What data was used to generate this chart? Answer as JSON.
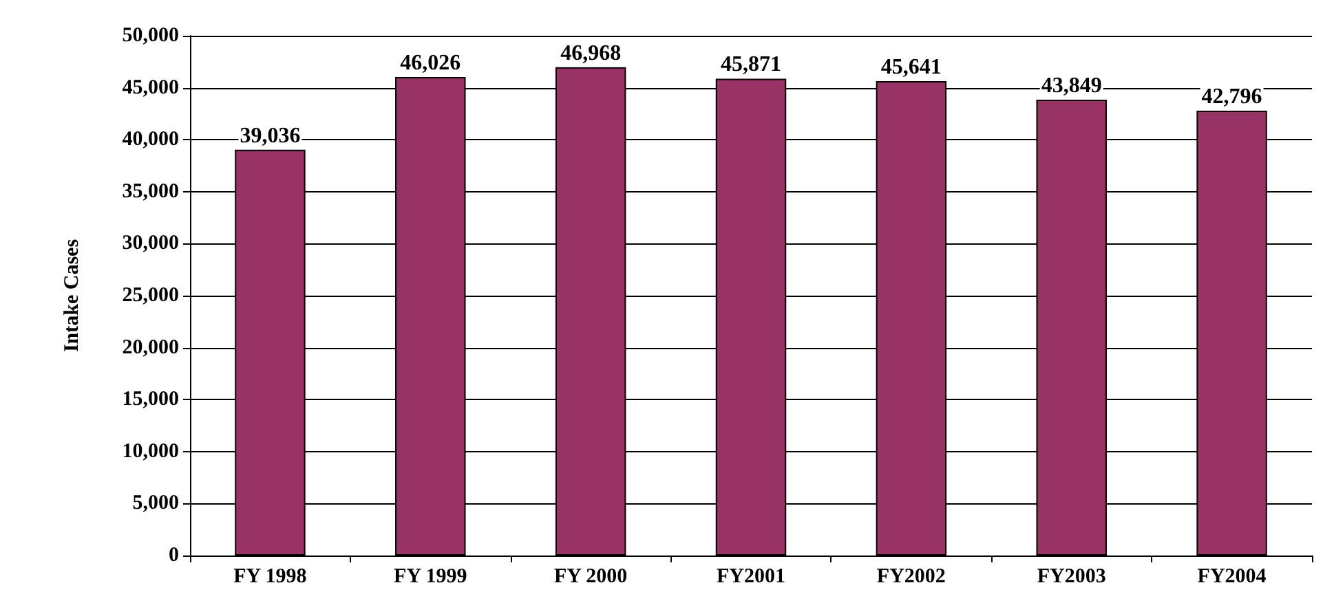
{
  "chart_data": {
    "type": "bar",
    "ylabel": "Intake Cases",
    "categories": [
      "FY 1998",
      "FY 1999",
      "FY 2000",
      "FY2001",
      "FY2002",
      "FY2003",
      "FY2004"
    ],
    "values": [
      39036,
      46026,
      46968,
      45871,
      45641,
      43849,
      42796
    ],
    "value_labels": [
      "39,036",
      "46,026",
      "46,968",
      "45,871",
      "45,641",
      "43,849",
      "42,796"
    ],
    "color": "#993366",
    "ylim": [
      0,
      50000
    ],
    "yticks": [
      0,
      {
        "value": 5000,
        "label": "5,000"
      },
      {
        "value": 10000,
        "label": "10,000"
      },
      {
        "value": 15000,
        "label": "15,000"
      },
      {
        "value": 20000,
        "label": "20,000"
      },
      {
        "value": 25000,
        "label": "25,000"
      },
      {
        "value": 30000,
        "label": "30,000"
      },
      {
        "value": 35000,
        "label": "35,000"
      },
      {
        "value": 40000,
        "label": "40,000"
      },
      {
        "value": 45000,
        "label": "45,000"
      },
      {
        "value": 50000,
        "label": "50,000"
      }
    ],
    "grid": "y"
  }
}
